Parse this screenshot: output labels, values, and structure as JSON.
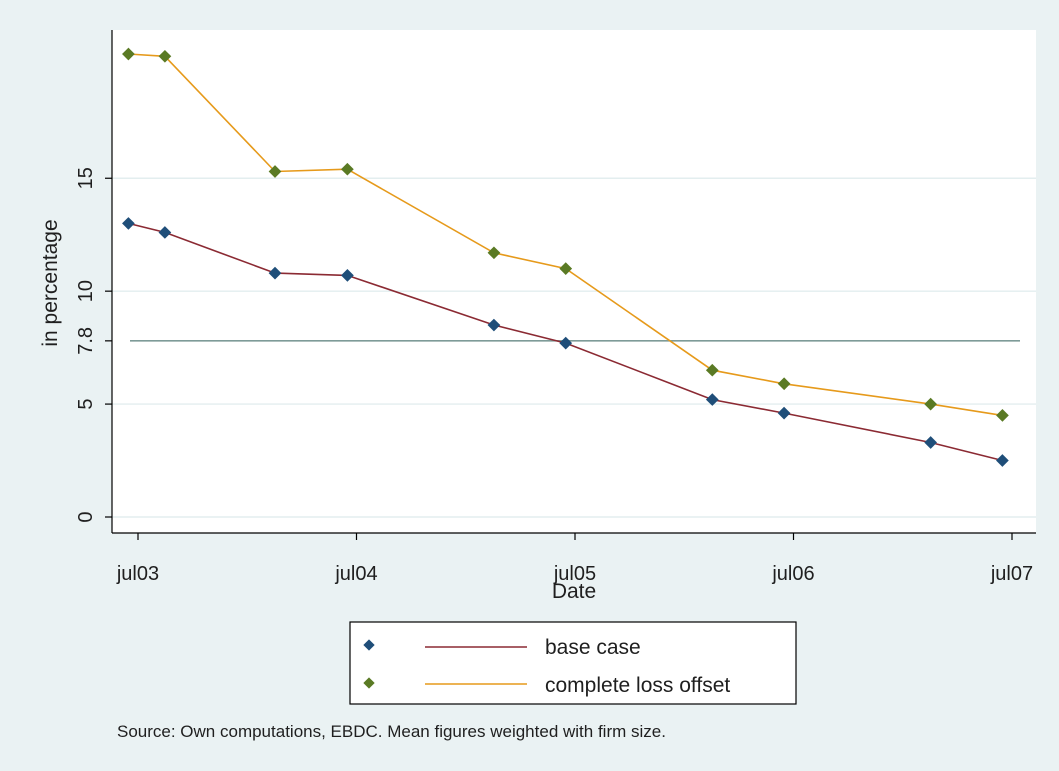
{
  "chart_data": {
    "type": "line",
    "xlabel": "Date",
    "ylabel": "in percentage",
    "x_tick_labels": [
      "jul03",
      "jul04",
      "jul05",
      "jul06",
      "jul07"
    ],
    "y_tick_labels": [
      "0",
      "5",
      "7.8",
      "10",
      "15"
    ],
    "y_ticks": [
      0,
      5,
      7.8,
      10,
      15
    ],
    "ylim": [
      0,
      20.9
    ],
    "grid": true,
    "reference_line": {
      "y": 7.8
    },
    "x": [
      "2003-06",
      "2003-08",
      "2004-02",
      "2004-06",
      "2005-02",
      "2005-06",
      "2006-02",
      "2006-06",
      "2007-02",
      "2007-06"
    ],
    "series": [
      {
        "name": "base case",
        "line_color": "#8b2a33",
        "marker_color": "#1f4e79",
        "values": [
          13.0,
          12.6,
          10.8,
          10.7,
          8.5,
          7.7,
          5.2,
          4.6,
          3.3,
          2.5
        ]
      },
      {
        "name": "complete loss offset",
        "line_color": "#e69a1b",
        "marker_color": "#5a7a24",
        "values": [
          20.5,
          20.4,
          15.3,
          15.4,
          11.7,
          11.0,
          6.5,
          5.9,
          5.0,
          4.5
        ]
      }
    ],
    "legend_position": "bottom",
    "note": "Source: Own computations, EBDC. Mean figures weighted with firm size."
  }
}
